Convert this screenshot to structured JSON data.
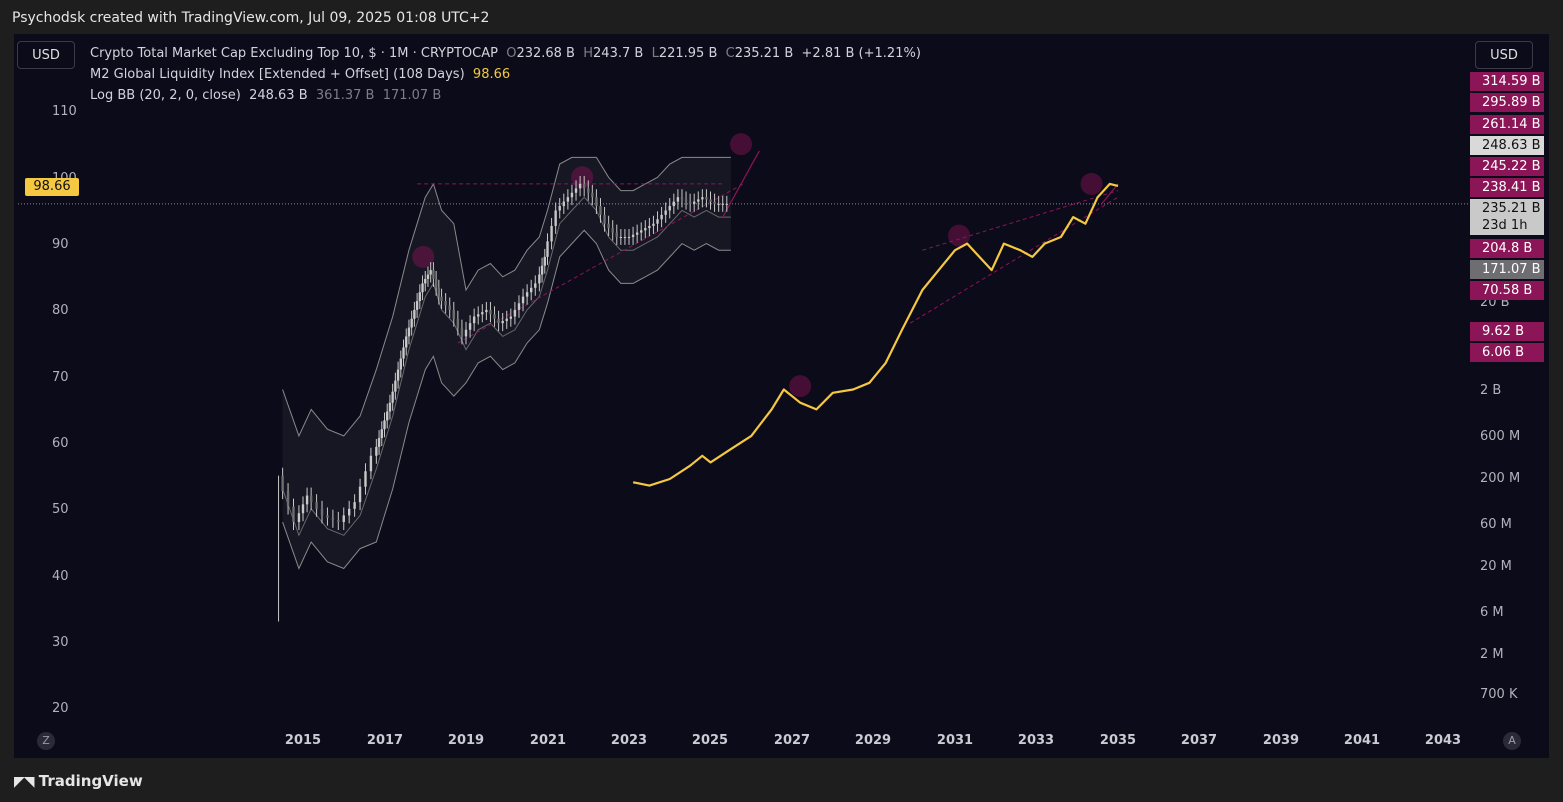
{
  "header": {
    "attribution": "Psychodsk created with TradingView.com, Jul 09, 2025 01:08 UTC+2"
  },
  "currency_left": "USD",
  "currency_right": "USD",
  "legend": {
    "main_title": "Crypto Total Market Cap Excluding Top 10, $ · 1M · CRYPTOCAP",
    "o_label": "O",
    "o_value": "232.68 B",
    "h_label": "H",
    "h_value": "243.7 B",
    "l_label": "L",
    "l_value": "221.95 B",
    "c_label": "C",
    "c_value": "235.21 B",
    "change": "+2.81 B (+1.21%)",
    "m2_title": "M2 Global Liquidity Index [Extended + Offset] (108 Days)",
    "m2_value": "98.66",
    "bb_title": "Log BB (20, 2, 0, close)",
    "bb_basis": "248.63 B",
    "bb_upper": "361.37 B",
    "bb_lower": "171.07 B"
  },
  "footer": {
    "logo": "TradingView",
    "logo_icon": "tradingview-logo-icon"
  },
  "corner": {
    "left": "Z",
    "right": "A"
  },
  "colors": {
    "m2_line": "#f5c842",
    "candle": "#c8c8c8",
    "bb": "#8a8a8a",
    "accent": "#8c1558",
    "bg": "#0b0b19"
  },
  "chart_data": {
    "type": "line",
    "x_ticks": [
      "2015",
      "2017",
      "2019",
      "2021",
      "2023",
      "2025",
      "2027",
      "2029",
      "2031",
      "2033",
      "2035",
      "2037",
      "2039",
      "2041",
      "2043"
    ],
    "left_axis_ticks": [
      "110",
      "100",
      "90",
      "80",
      "70",
      "60",
      "50",
      "40",
      "30",
      "20"
    ],
    "right_axis_ticks": [
      "20 B",
      "2 B",
      "600 M",
      "200 M",
      "60 M",
      "20 M",
      "6 M",
      "2 M",
      "700 K"
    ],
    "m2_current_label": "98.66",
    "price_labels": [
      {
        "value": "314.59 B",
        "style": "accent"
      },
      {
        "value": "295.89 B",
        "style": "accent"
      },
      {
        "value": "261.14 B",
        "style": "accent"
      },
      {
        "value": "248.63 B",
        "style": "light"
      },
      {
        "value": "245.22 B",
        "style": "accent"
      },
      {
        "value": "238.41 B",
        "style": "accent"
      },
      {
        "value": "235.21 B",
        "style": "current",
        "sub": "23d 1h"
      },
      {
        "value": "204.8 B",
        "style": "accent"
      },
      {
        "value": "171.07 B",
        "style": "grey"
      },
      {
        "value": "70.58 B",
        "style": "accent"
      },
      {
        "value": "9.62 B",
        "style": "accent"
      },
      {
        "value": "6.06 B",
        "style": "accent"
      }
    ],
    "series": [
      {
        "name": "Crypto Total Market Cap Excluding Top 10, $ · 1M · CRYPTOCAP",
        "axis": "right",
        "points": [
          [
            2014.5,
            55
          ],
          [
            2014.9,
            48
          ],
          [
            2015.2,
            52
          ],
          [
            2015.6,
            49
          ],
          [
            2016.0,
            48
          ],
          [
            2016.4,
            51
          ],
          [
            2016.8,
            58
          ],
          [
            2017.0,
            62
          ],
          [
            2017.2,
            66
          ],
          [
            2017.4,
            71
          ],
          [
            2017.6,
            76
          ],
          [
            2017.8,
            80
          ],
          [
            2018.0,
            84
          ],
          [
            2018.2,
            86
          ],
          [
            2018.4,
            82
          ],
          [
            2018.7,
            80
          ],
          [
            2019.0,
            76
          ],
          [
            2019.3,
            79
          ],
          [
            2019.6,
            80
          ],
          [
            2019.9,
            78
          ],
          [
            2020.2,
            79
          ],
          [
            2020.5,
            82
          ],
          [
            2020.8,
            84
          ],
          [
            2021.0,
            88
          ],
          [
            2021.3,
            95
          ],
          [
            2021.6,
            97
          ],
          [
            2021.9,
            99
          ],
          [
            2022.2,
            97
          ],
          [
            2022.5,
            93
          ],
          [
            2022.8,
            91
          ],
          [
            2023.1,
            91
          ],
          [
            2023.4,
            92
          ],
          [
            2023.7,
            93
          ],
          [
            2024.0,
            95
          ],
          [
            2024.3,
            97
          ],
          [
            2024.6,
            96
          ],
          [
            2024.9,
            97
          ],
          [
            2025.2,
            96
          ],
          [
            2025.5,
            96
          ]
        ]
      },
      {
        "name": "M2 Global Liquidity Index [Extended + Offset] (108 Days)",
        "axis": "left",
        "points": [
          [
            2023.1,
            54
          ],
          [
            2023.5,
            53.5
          ],
          [
            2024.0,
            54.5
          ],
          [
            2024.5,
            56.5
          ],
          [
            2024.8,
            58
          ],
          [
            2025.0,
            57
          ],
          [
            2025.5,
            59
          ],
          [
            2026.0,
            61
          ],
          [
            2026.5,
            65
          ],
          [
            2026.8,
            68
          ],
          [
            2027.2,
            66
          ],
          [
            2027.6,
            65
          ],
          [
            2028.0,
            67.5
          ],
          [
            2028.5,
            68
          ],
          [
            2028.9,
            69
          ],
          [
            2029.3,
            72
          ],
          [
            2029.7,
            77
          ],
          [
            2030.2,
            83
          ],
          [
            2030.6,
            86
          ],
          [
            2031.0,
            89
          ],
          [
            2031.3,
            90
          ],
          [
            2031.6,
            88
          ],
          [
            2031.9,
            86
          ],
          [
            2032.2,
            90
          ],
          [
            2032.6,
            89
          ],
          [
            2032.9,
            88
          ],
          [
            2033.2,
            90
          ],
          [
            2033.6,
            91
          ],
          [
            2033.9,
            94
          ],
          [
            2034.2,
            93
          ],
          [
            2034.5,
            97
          ],
          [
            2034.8,
            99
          ],
          [
            2035.0,
            98.7
          ]
        ]
      },
      {
        "name": "Log BB (20, 2, 0, close)",
        "axis": "right"
      }
    ]
  }
}
